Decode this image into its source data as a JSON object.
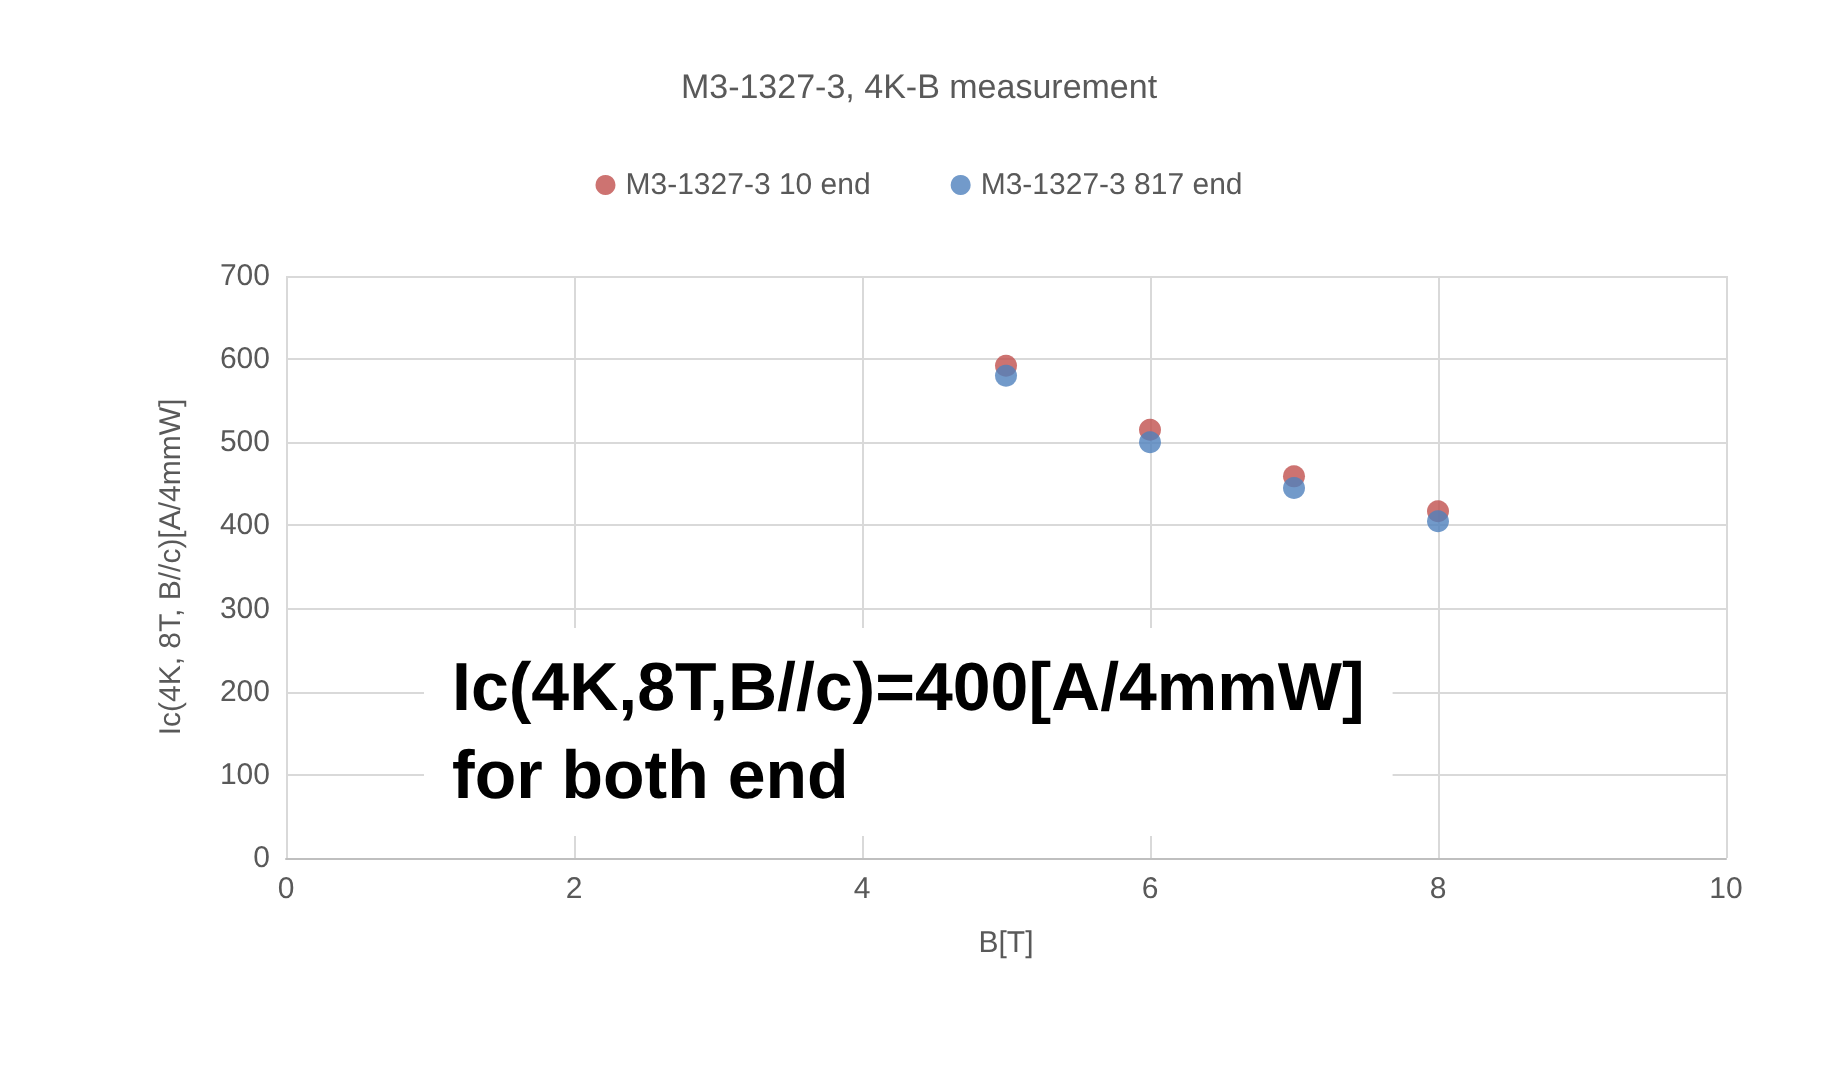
{
  "chart_data": {
    "type": "scatter",
    "title": "M3-1327-3, 4K-B measurement",
    "xlabel": "B[T]",
    "ylabel": "Ic(4K, 8T, B//c)[A/4mmW]",
    "x": [
      5,
      6,
      7,
      8
    ],
    "series": [
      {
        "name": "M3-1327-3 10 end",
        "color": "#c0504d",
        "values": [
          592,
          515,
          459,
          417
        ]
      },
      {
        "name": "M3-1327-3 817 end",
        "color": "#4f81bd",
        "values": [
          580,
          500,
          445,
          405
        ]
      }
    ],
    "xlim": [
      0,
      10
    ],
    "xticks": [
      0,
      2,
      4,
      6,
      8,
      10
    ],
    "ylim": [
      0,
      700
    ],
    "yticks": [
      0,
      100,
      200,
      300,
      400,
      500,
      600,
      700
    ],
    "grid": true,
    "legend": "top",
    "marker": "circle",
    "annotations": [
      "Ic(4K,8T,B//c)=400[A/4mmW]\nfor both end"
    ]
  }
}
